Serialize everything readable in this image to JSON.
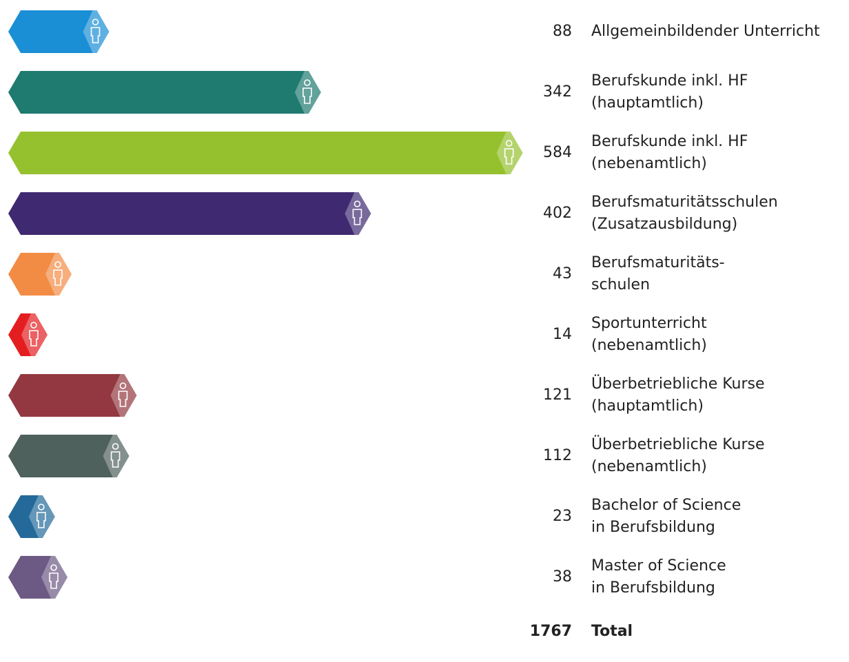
{
  "chart_data": {
    "type": "bar",
    "categories": [
      "Allgemeinbildender Unterricht",
      "Berufskunde inkl. HF\n(hauptamtlich)",
      "Berufskunde inkl. HF\n(nebenamtlich)",
      "Berufsmaturitätsschulen\n(Zusatzausbildung)",
      "Berufsmaturitäts-\nschulen",
      "Sportunterricht\n(nebenamtlich)",
      "Überbetriebliche Kurse\n(hauptamtlich)",
      "Überbetriebliche Kurse\n(nebenamtlich)",
      "Bachelor of Science\nin Berufsbildung",
      "Master of Science\nin Berufsbildung"
    ],
    "values": [
      88,
      342,
      584,
      402,
      43,
      14,
      121,
      112,
      23,
      38
    ],
    "colors": [
      "#1a8fd6",
      "#1f7a70",
      "#96c12f",
      "#3f2a72",
      "#f28c45",
      "#e41e20",
      "#933840",
      "#4f615c",
      "#236a9a",
      "#6c5a84"
    ],
    "total_label": "Total",
    "total": 1767
  }
}
